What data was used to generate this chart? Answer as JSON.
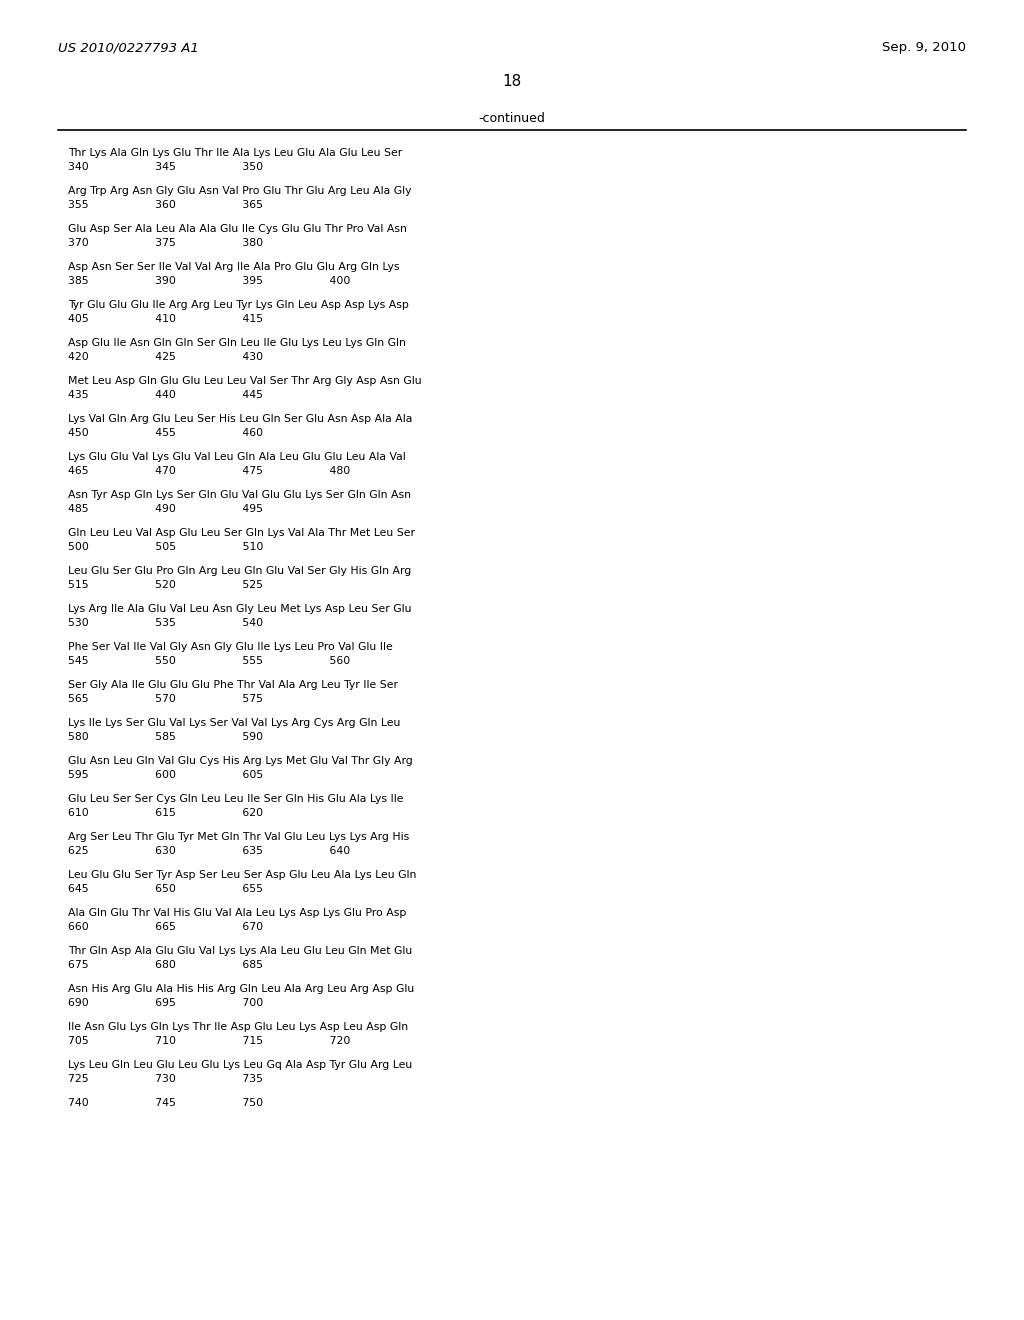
{
  "header_left": "US 2010/0227793 A1",
  "header_right": "Sep. 9, 2010",
  "page_number": "18",
  "continued_label": "-continued",
  "bg": "#ffffff",
  "tc": "#000000",
  "lines": [
    {
      "text": "340                   345                   350",
      "type": "num"
    },
    {
      "text": "Thr Lys Ala Gln Lys Glu Thr Ile Ala Lys Leu Glu Ala Glu Leu Ser",
      "type": "seq"
    },
    {
      "text": "355                   360                   365",
      "type": "num"
    },
    {
      "text": "Arg Trp Arg Asn Gly Glu Asn Val Pro Glu Thr Glu Arg Leu Ala Gly",
      "type": "seq"
    },
    {
      "text": "370                   375                   380",
      "type": "num"
    },
    {
      "text": "Glu Asp Ser Ala Leu Ala Ala Glu Ile Cys Glu Glu Thr Pro Val Asn",
      "type": "seq"
    },
    {
      "text": "385                   390                   395                   400",
      "type": "num"
    },
    {
      "text": "Asp Asn Ser Ser Ile Val Val Arg Ile Ala Pro Glu Glu Arg Gln Lys",
      "type": "seq"
    },
    {
      "text": "405                   410                   415",
      "type": "num"
    },
    {
      "text": "Tyr Glu Glu Glu Ile Arg Arg Leu Tyr Lys Gln Leu Asp Asp Lys Asp",
      "type": "seq"
    },
    {
      "text": "420                   425                   430",
      "type": "num"
    },
    {
      "text": "Asp Glu Ile Asn Gln Gln Ser Gln Leu Ile Glu Lys Leu Lys Gln Gln",
      "type": "seq"
    },
    {
      "text": "435                   440                   445",
      "type": "num"
    },
    {
      "text": "Met Leu Asp Gln Glu Glu Leu Leu Val Ser Thr Arg Gly Asp Asn Glu",
      "type": "seq"
    },
    {
      "text": "450                   455                   460",
      "type": "num"
    },
    {
      "text": "Lys Val Gln Arg Glu Leu Ser His Leu Gln Ser Glu Asn Asp Ala Ala",
      "type": "seq"
    },
    {
      "text": "465                   470                   475                   480",
      "type": "num"
    },
    {
      "text": "Lys Glu Glu Val Lys Glu Val Leu Gln Ala Leu Glu Glu Leu Ala Val",
      "type": "seq"
    },
    {
      "text": "485                   490                   495",
      "type": "num"
    },
    {
      "text": "Asn Tyr Asp Gln Lys Ser Gln Glu Val Glu Glu Lys Ser Gln Gln Asn",
      "type": "seq"
    },
    {
      "text": "500                   505                   510",
      "type": "num"
    },
    {
      "text": "Gln Leu Leu Val Asp Glu Leu Ser Gln Lys Val Ala Thr Met Leu Ser",
      "type": "seq"
    },
    {
      "text": "515                   520                   525",
      "type": "num"
    },
    {
      "text": "Leu Glu Ser Glu Pro Gln Arg Leu Gln Glu Val Ser Gly His Gln Arg",
      "type": "seq"
    },
    {
      "text": "530                   535                   540",
      "type": "num"
    },
    {
      "text": "Lys Arg Ile Ala Glu Val Leu Asn Gly Leu Met Lys Asp Leu Ser Glu",
      "type": "seq"
    },
    {
      "text": "545                   550                   555                   560",
      "type": "num"
    },
    {
      "text": "Phe Ser Val Ile Val Gly Asn Gly Glu Ile Lys Leu Pro Val Glu Ile",
      "type": "seq"
    },
    {
      "text": "565                   570                   575",
      "type": "num"
    },
    {
      "text": "Ser Gly Ala Ile Glu Glu Glu Phe Thr Val Ala Arg Leu Tyr Ile Ser",
      "type": "seq"
    },
    {
      "text": "580                   585                   590",
      "type": "num"
    },
    {
      "text": "Lys Ile Lys Ser Glu Val Lys Ser Val Val Lys Arg Cys Arg Gln Leu",
      "type": "seq"
    },
    {
      "text": "595                   600                   605",
      "type": "num"
    },
    {
      "text": "Glu Asn Leu Gln Val Glu Cys His Arg Lys Met Glu Val Thr Gly Arg",
      "type": "seq"
    },
    {
      "text": "610                   615                   620",
      "type": "num"
    },
    {
      "text": "Glu Leu Ser Ser Cys Gln Leu Leu Ile Ser Gln His Glu Ala Lys Ile",
      "type": "seq"
    },
    {
      "text": "625                   630                   635                   640",
      "type": "num"
    },
    {
      "text": "Arg Ser Leu Thr Glu Tyr Met Gln Thr Val Glu Leu Lys Lys Arg His",
      "type": "seq"
    },
    {
      "text": "645                   650                   655",
      "type": "num"
    },
    {
      "text": "Leu Glu Glu Ser Tyr Asp Ser Leu Ser Asp Glu Leu Ala Lys Leu Gln",
      "type": "seq"
    },
    {
      "text": "660                   665                   670",
      "type": "num"
    },
    {
      "text": "Ala Gln Glu Thr Val His Glu Val Ala Leu Lys Asp Lys Glu Pro Asp",
      "type": "seq"
    },
    {
      "text": "675                   680                   685",
      "type": "num"
    },
    {
      "text": "Thr Gln Asp Ala Glu Glu Val Lys Lys Ala Leu Glu Leu Gln Met Glu",
      "type": "seq"
    },
    {
      "text": "690                   695                   700",
      "type": "num"
    },
    {
      "text": "Asn His Arg Glu Ala His His Arg Gln Leu Ala Arg Leu Arg Asp Glu",
      "type": "seq"
    },
    {
      "text": "705                   710                   715                   720",
      "type": "num"
    },
    {
      "text": "Ile Asn Glu Lys Gln Lys Thr Ile Asp Glu Leu Lys Asp Leu Asp Gln",
      "type": "seq"
    },
    {
      "text": "725                   730                   735",
      "type": "num"
    },
    {
      "text": "Lys Leu Gln Leu Glu Leu Glu Lys Leu Gq Ala Asp Tyr Glu Arg Leu",
      "type": "seq"
    },
    {
      "text": "740                   745                   750",
      "type": "num"
    }
  ]
}
